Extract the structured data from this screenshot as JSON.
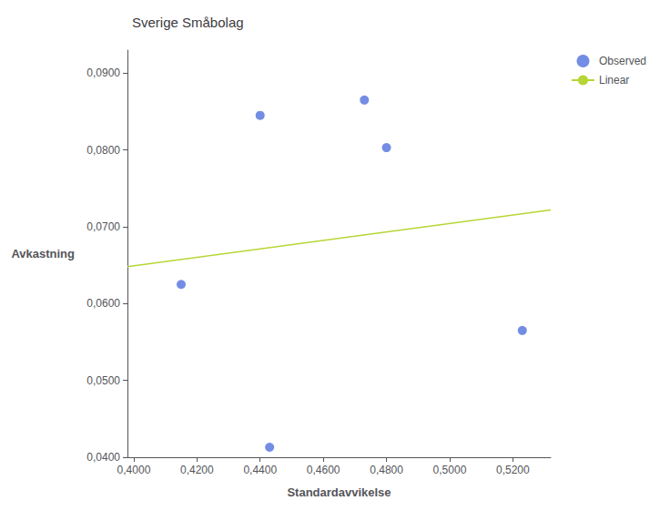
{
  "chart_data": {
    "type": "scatter",
    "title": "Sverige Småbolag",
    "xlabel": "Standardavvikelse",
    "ylabel": "Avkastning",
    "series": [
      {
        "name": "Observed",
        "type": "scatter",
        "marker": "circle",
        "x": [
          0.415,
          0.44,
          0.443,
          0.473,
          0.48,
          0.523
        ],
        "values": [
          0.0625,
          0.0845,
          0.0413,
          0.0865,
          0.0803,
          0.0565
        ]
      },
      {
        "name": "Linear",
        "type": "line",
        "x": [
          0.398,
          0.532
        ],
        "values": [
          0.0648,
          0.0722
        ]
      }
    ],
    "xlim": [
      0.398,
      0.532
    ],
    "ylim": [
      0.04,
      0.093
    ],
    "xticks": [
      {
        "value": 0.4,
        "label": "0,4000"
      },
      {
        "value": 0.42,
        "label": "0,4200"
      },
      {
        "value": 0.44,
        "label": "0,4400"
      },
      {
        "value": 0.46,
        "label": "0,4600"
      },
      {
        "value": 0.48,
        "label": "0,4800"
      },
      {
        "value": 0.5,
        "label": "0,5000"
      },
      {
        "value": 0.52,
        "label": "0,5200"
      }
    ],
    "yticks": [
      {
        "value": 0.04,
        "label": "0,0400"
      },
      {
        "value": 0.05,
        "label": "0,0500"
      },
      {
        "value": 0.06,
        "label": "0,0600"
      },
      {
        "value": 0.07,
        "label": "0,0700"
      },
      {
        "value": 0.08,
        "label": "0,0800"
      },
      {
        "value": 0.09,
        "label": "0,0900"
      }
    ],
    "grid": false,
    "legend": "right"
  }
}
